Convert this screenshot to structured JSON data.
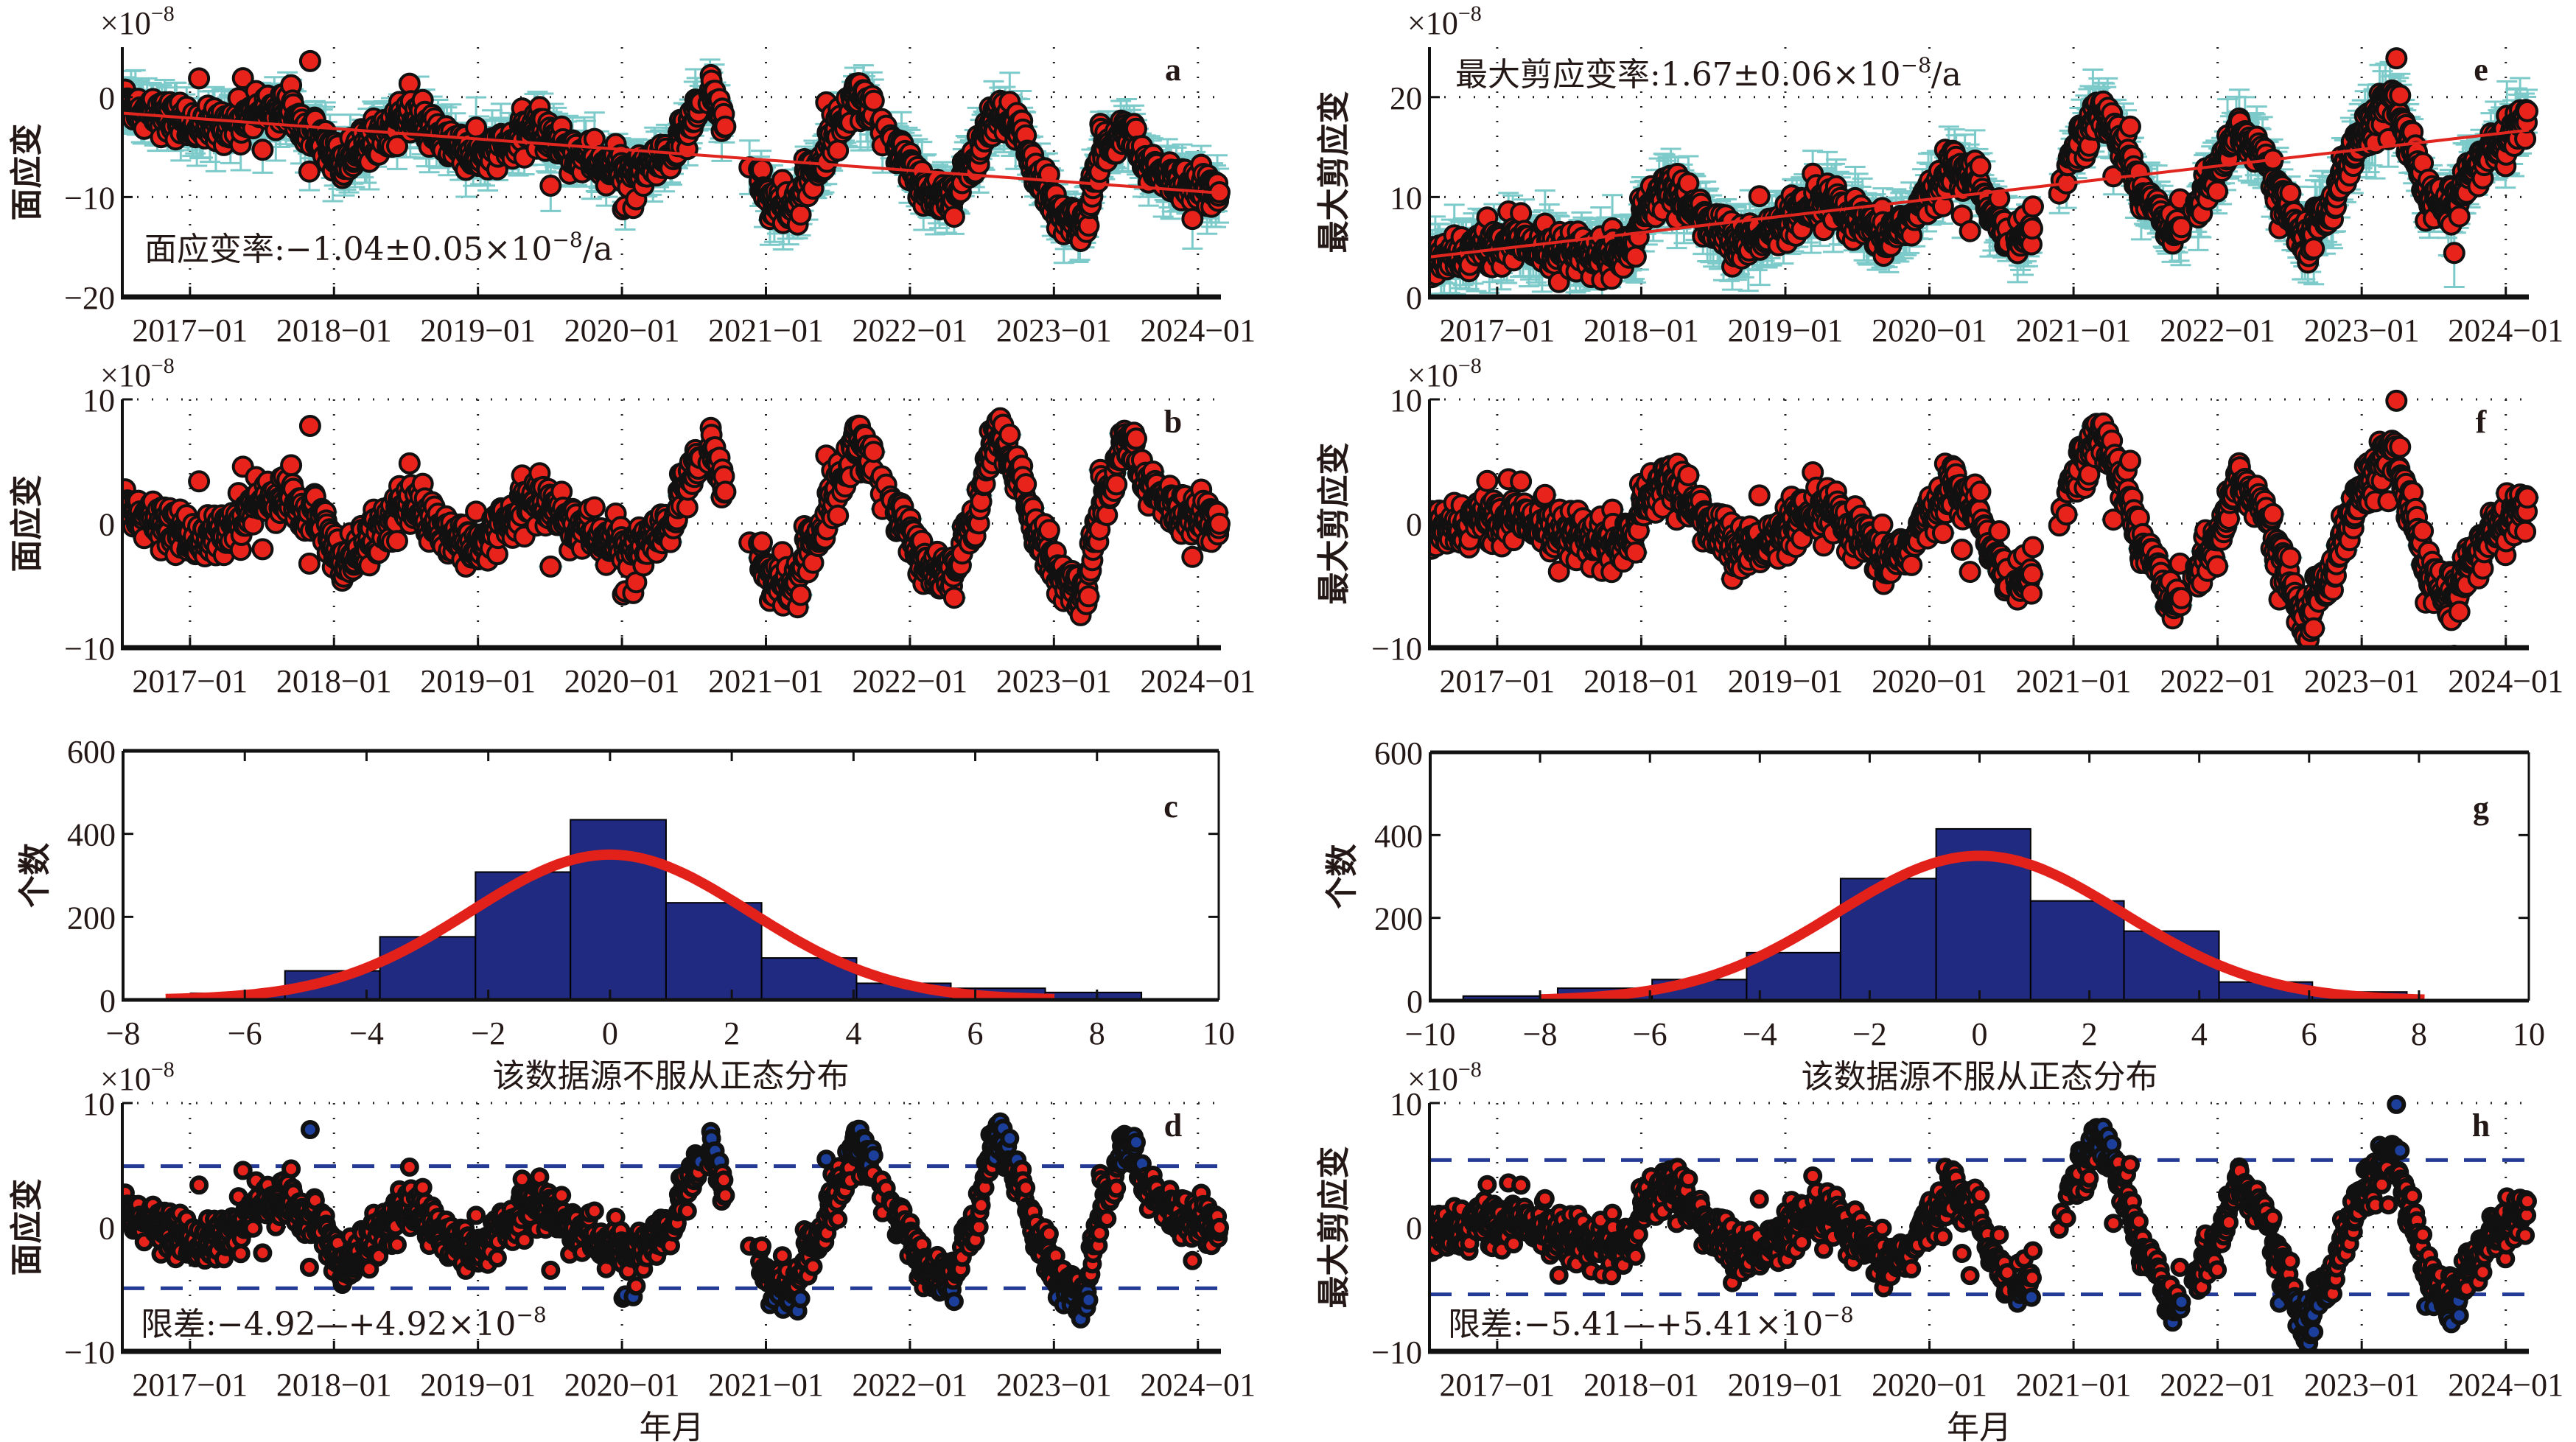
{
  "colors": {
    "point_fill": "#e8231c",
    "point_edge": "#111111",
    "outlier_fill": "#1d3f9c",
    "errorbar": "#7dcaca",
    "trend": "#e0261e",
    "hist_bar": "#1f2a80",
    "gauss": "#e3211b",
    "limit_line": "#243b95",
    "axis": "#111111"
  },
  "chart_data": [
    {
      "id": "a",
      "panel_label": "a",
      "type": "scatter",
      "ylabel": "面应变",
      "scale_label": "×10",
      "scale_exp": "−8",
      "ylim": [
        -20,
        5
      ],
      "yticks": [
        -20,
        -10,
        0
      ],
      "ytick_labels": [
        "−20",
        "−10",
        "0"
      ],
      "xlim": [
        2016.53,
        2024.16
      ],
      "xticks": [
        2017,
        2018,
        2019,
        2020,
        2021,
        2022,
        2023,
        2024
      ],
      "xtick_labels": [
        "2017−01",
        "2018−01",
        "2019−01",
        "2020−01",
        "2021−01",
        "2022−01",
        "2023−01",
        "2024−01"
      ],
      "grid": true,
      "error_bars": true,
      "errorbar_halfwidth": 2.2,
      "trend": {
        "start": [
          2016.53,
          -1.6
        ],
        "end": [
          2024.16,
          -9.6
        ],
        "rate_label": "面应变率:−1.04±0.05×10",
        "rate_exp": "−8",
        "rate_unit": "/a"
      },
      "series_shape": [
        [
          2016.55,
          -0.5
        ],
        [
          2016.7,
          -1.5
        ],
        [
          2016.9,
          -2.2
        ],
        [
          2017.1,
          -3.0
        ],
        [
          2017.3,
          -2.5
        ],
        [
          2017.5,
          -1.2
        ],
        [
          2017.7,
          -1.5
        ],
        [
          2017.9,
          -3.5
        ],
        [
          2018.05,
          -6.5
        ],
        [
          2018.2,
          -5.0
        ],
        [
          2018.35,
          -3.5
        ],
        [
          2018.5,
          -2.0
        ],
        [
          2018.6,
          -3.0
        ],
        [
          2018.8,
          -4.5
        ],
        [
          2019.0,
          -6.0
        ],
        [
          2019.2,
          -5.0
        ],
        [
          2019.4,
          -3.0
        ],
        [
          2019.55,
          -4.5
        ],
        [
          2019.75,
          -6.0
        ],
        [
          2019.9,
          -7.0
        ],
        [
          2020.1,
          -7.5
        ],
        [
          2020.3,
          -6.5
        ],
        [
          2020.45,
          -3.5
        ],
        [
          2020.6,
          1.0
        ],
        [
          2020.75,
          -4.0
        ],
        [
          2020.9,
          -6.5
        ],
        [
          2021.05,
          -10.5
        ],
        [
          2021.2,
          -11.0
        ],
        [
          2021.35,
          -7.0
        ],
        [
          2021.5,
          -3.0
        ],
        [
          2021.65,
          0.5
        ],
        [
          2021.8,
          -3.0
        ],
        [
          2021.95,
          -6.0
        ],
        [
          2022.1,
          -9.5
        ],
        [
          2022.3,
          -10.0
        ],
        [
          2022.45,
          -6.0
        ],
        [
          2022.6,
          -1.5
        ],
        [
          2022.75,
          -3.0
        ],
        [
          2022.9,
          -8.0
        ],
        [
          2023.05,
          -12.0
        ],
        [
          2023.2,
          -12.5
        ],
        [
          2023.35,
          -5.0
        ],
        [
          2023.5,
          -3.0
        ],
        [
          2023.65,
          -7.0
        ],
        [
          2023.85,
          -8.5
        ],
        [
          2024.15,
          -9.5
        ]
      ],
      "gaps": [
        [
          2020.55,
          2020.6
        ],
        [
          2020.72,
          2020.95
        ],
        [
          2021.75,
          2021.9
        ]
      ]
    },
    {
      "id": "b",
      "panel_label": "b",
      "type": "scatter",
      "ylabel": "面应变",
      "scale_label": "×10",
      "scale_exp": "−8",
      "ylim": [
        -10,
        10
      ],
      "yticks": [
        -10,
        0,
        10
      ],
      "ytick_labels": [
        "−10",
        "0",
        "10"
      ],
      "xlim": [
        2016.53,
        2024.16
      ],
      "xticks": [
        2017,
        2018,
        2019,
        2020,
        2021,
        2022,
        2023,
        2024
      ],
      "xtick_labels": [
        "2017−01",
        "2018−01",
        "2019−01",
        "2020−01",
        "2021−01",
        "2022−01",
        "2023−01",
        "2024−01"
      ],
      "grid": true,
      "series_shape": [
        [
          2016.55,
          1.5
        ],
        [
          2016.7,
          0.5
        ],
        [
          2016.9,
          -0.5
        ],
        [
          2017.1,
          -1.5
        ],
        [
          2017.3,
          0.0
        ],
        [
          2017.5,
          2.0
        ],
        [
          2017.7,
          2.0
        ],
        [
          2017.9,
          1.0
        ],
        [
          2018.05,
          -3.0
        ],
        [
          2018.2,
          -2.0
        ],
        [
          2018.35,
          0.0
        ],
        [
          2018.5,
          1.5
        ],
        [
          2018.6,
          0.5
        ],
        [
          2018.8,
          -1.0
        ],
        [
          2019.0,
          -2.0
        ],
        [
          2019.2,
          0.0
        ],
        [
          2019.4,
          2.0
        ],
        [
          2019.55,
          1.0
        ],
        [
          2019.75,
          -0.5
        ],
        [
          2019.9,
          -1.5
        ],
        [
          2020.1,
          -2.0
        ],
        [
          2020.3,
          -1.0
        ],
        [
          2020.45,
          3.0
        ],
        [
          2020.6,
          6.5
        ],
        [
          2020.75,
          1.5
        ],
        [
          2020.9,
          -1.0
        ],
        [
          2021.05,
          -4.5
        ],
        [
          2021.2,
          -5.0
        ],
        [
          2021.35,
          -1.0
        ],
        [
          2021.5,
          3.0
        ],
        [
          2021.65,
          7.0
        ],
        [
          2021.8,
          3.0
        ],
        [
          2021.95,
          0.0
        ],
        [
          2022.1,
          -3.5
        ],
        [
          2022.3,
          -4.0
        ],
        [
          2022.45,
          0.5
        ],
        [
          2022.6,
          7.5
        ],
        [
          2022.75,
          4.0
        ],
        [
          2022.9,
          -1.0
        ],
        [
          2023.05,
          -4.5
        ],
        [
          2023.2,
          -5.5
        ],
        [
          2023.35,
          2.0
        ],
        [
          2023.5,
          7.0
        ],
        [
          2023.65,
          3.0
        ],
        [
          2023.85,
          1.0
        ],
        [
          2024.15,
          0.0
        ]
      ],
      "gaps": [
        [
          2020.55,
          2020.6
        ],
        [
          2020.72,
          2020.95
        ],
        [
          2021.75,
          2021.9
        ]
      ]
    },
    {
      "id": "c",
      "panel_label": "c",
      "type": "bar",
      "ylabel": "个数",
      "xlabel": "该数据源不服从正态分布",
      "xlim": [
        -8,
        10
      ],
      "xticks": [
        -8,
        -6,
        -4,
        -2,
        0,
        2,
        4,
        6,
        8,
        10
      ],
      "xtick_labels": [
        "−8",
        "−6",
        "−4",
        "−2",
        "0",
        "2",
        "4",
        "6",
        "8",
        "10"
      ],
      "ylim": [
        0,
        600
      ],
      "yticks": [
        0,
        200,
        400,
        600
      ],
      "ytick_labels": [
        "0",
        "200",
        "400",
        "600"
      ],
      "bin_edges": [
        -6.89,
        -5.34,
        -3.78,
        -2.21,
        -0.65,
        0.92,
        2.49,
        4.05,
        5.6,
        7.15,
        8.73
      ],
      "counts": [
        16,
        70,
        152,
        308,
        434,
        234,
        101,
        40,
        28,
        18
      ],
      "normal_fit": {
        "mean": 0.0,
        "peak": 350,
        "sigma": 2.3,
        "x_range": [
          -7.3,
          7.3
        ]
      }
    },
    {
      "id": "d",
      "panel_label": "d",
      "type": "scatter",
      "ylabel": "面应变",
      "xlabel": "年月",
      "scale_label": "×10",
      "scale_exp": "−8",
      "ylim": [
        -10,
        10
      ],
      "yticks": [
        -10,
        0,
        10
      ],
      "ytick_labels": [
        "−10",
        "0",
        "10"
      ],
      "xlim": [
        2016.53,
        2024.16
      ],
      "xticks": [
        2017,
        2018,
        2019,
        2020,
        2021,
        2022,
        2023,
        2024
      ],
      "xtick_labels": [
        "2017−01",
        "2018−01",
        "2019−01",
        "2020−01",
        "2021−01",
        "2022−01",
        "2023−01",
        "2024−01"
      ],
      "grid": true,
      "source": "b",
      "limit": 4.92,
      "limit_label": "限差:−4.92—+4.92×10",
      "limit_exp": "−8"
    },
    {
      "id": "e",
      "panel_label": "e",
      "type": "scatter",
      "ylabel": "最大剪应变",
      "scale_label": "×10",
      "scale_exp": "−8",
      "ylim": [
        0,
        25
      ],
      "yticks": [
        0,
        10,
        20
      ],
      "ytick_labels": [
        "0",
        "10",
        "20"
      ],
      "xlim": [
        2016.53,
        2024.16
      ],
      "xticks": [
        2017,
        2018,
        2019,
        2020,
        2021,
        2022,
        2023,
        2024
      ],
      "xtick_labels": [
        "2017−01",
        "2018−01",
        "2019−01",
        "2020−01",
        "2021−01",
        "2022−01",
        "2023−01",
        "2024−01"
      ],
      "grid": true,
      "error_bars": true,
      "errorbar_halfwidth": 2.6,
      "trend": {
        "start": [
          2016.53,
          4.0
        ],
        "end": [
          2024.16,
          16.7
        ],
        "rate_label": "最大剪应变率:1.67±0.06×10",
        "rate_exp": "−8",
        "rate_unit": "/a"
      },
      "series_shape": [
        [
          2016.55,
          3.5
        ],
        [
          2016.7,
          4.0
        ],
        [
          2016.9,
          5.0
        ],
        [
          2017.1,
          5.5
        ],
        [
          2017.3,
          5.0
        ],
        [
          2017.5,
          5.0
        ],
        [
          2017.7,
          4.0
        ],
        [
          2017.9,
          4.5
        ],
        [
          2018.05,
          8.5
        ],
        [
          2018.2,
          11.5
        ],
        [
          2018.35,
          9.0
        ],
        [
          2018.5,
          7.0
        ],
        [
          2018.7,
          5.5
        ],
        [
          2018.9,
          6.5
        ],
        [
          2019.1,
          8.0
        ],
        [
          2019.3,
          9.5
        ],
        [
          2019.5,
          7.5
        ],
        [
          2019.7,
          6.0
        ],
        [
          2019.85,
          7.5
        ],
        [
          2020.0,
          10.0
        ],
        [
          2020.15,
          13.0
        ],
        [
          2020.3,
          12.0
        ],
        [
          2020.45,
          8.0
        ],
        [
          2020.6,
          5.0
        ],
        [
          2020.75,
          7.0
        ],
        [
          2020.9,
          11.0
        ],
        [
          2021.05,
          16.0
        ],
        [
          2021.2,
          18.5
        ],
        [
          2021.35,
          15.0
        ],
        [
          2021.5,
          10.0
        ],
        [
          2021.7,
          7.0
        ],
        [
          2021.85,
          9.0
        ],
        [
          2022.0,
          13.0
        ],
        [
          2022.15,
          16.5
        ],
        [
          2022.3,
          14.5
        ],
        [
          2022.45,
          10.0
        ],
        [
          2022.6,
          6.0
        ],
        [
          2022.75,
          8.0
        ],
        [
          2022.9,
          13.5
        ],
        [
          2023.05,
          17.0
        ],
        [
          2023.2,
          20.0
        ],
        [
          2023.35,
          15.0
        ],
        [
          2023.45,
          10.0
        ],
        [
          2023.6,
          9.0
        ],
        [
          2023.8,
          13.0
        ],
        [
          2023.95,
          15.5
        ],
        [
          2024.15,
          17.5
        ]
      ],
      "gaps": [
        [
          2020.55,
          2020.6
        ],
        [
          2020.72,
          2020.95
        ],
        [
          2021.75,
          2021.85
        ]
      ]
    },
    {
      "id": "f",
      "panel_label": "f",
      "type": "scatter",
      "ylabel": "最大剪应变",
      "scale_label": "×10",
      "scale_exp": "−8",
      "ylim": [
        -10,
        10
      ],
      "yticks": [
        -10,
        0,
        10
      ],
      "ytick_labels": [
        "−10",
        "0",
        "10"
      ],
      "xlim": [
        2016.53,
        2024.16
      ],
      "xticks": [
        2017,
        2018,
        2019,
        2020,
        2021,
        2022,
        2023,
        2024
      ],
      "xtick_labels": [
        "2017−01",
        "2018−01",
        "2019−01",
        "2020−01",
        "2021−01",
        "2022−01",
        "2023−01",
        "2024−01"
      ],
      "grid": true,
      "series_shape": [
        [
          2016.55,
          -0.5
        ],
        [
          2016.7,
          -0.5
        ],
        [
          2016.9,
          0.5
        ],
        [
          2017.1,
          0.5
        ],
        [
          2017.3,
          0.0
        ],
        [
          2017.5,
          -0.5
        ],
        [
          2017.7,
          -1.5
        ],
        [
          2017.9,
          -1.5
        ],
        [
          2018.05,
          1.5
        ],
        [
          2018.2,
          4.0
        ],
        [
          2018.35,
          1.5
        ],
        [
          2018.5,
          -0.5
        ],
        [
          2018.7,
          -2.0
        ],
        [
          2018.9,
          -1.5
        ],
        [
          2019.1,
          0.0
        ],
        [
          2019.3,
          1.0
        ],
        [
          2019.5,
          -1.0
        ],
        [
          2019.7,
          -3.0
        ],
        [
          2019.85,
          -2.0
        ],
        [
          2020.0,
          0.5
        ],
        [
          2020.15,
          3.0
        ],
        [
          2020.3,
          1.5
        ],
        [
          2020.45,
          -2.5
        ],
        [
          2020.6,
          -5.5
        ],
        [
          2020.75,
          -4.0
        ],
        [
          2020.9,
          0.5
        ],
        [
          2021.05,
          5.0
        ],
        [
          2021.2,
          7.0
        ],
        [
          2021.35,
          3.0
        ],
        [
          2021.5,
          -2.0
        ],
        [
          2021.7,
          -6.0
        ],
        [
          2021.85,
          -4.0
        ],
        [
          2022.0,
          -1.0
        ],
        [
          2022.15,
          3.5
        ],
        [
          2022.3,
          1.5
        ],
        [
          2022.45,
          -3.0
        ],
        [
          2022.6,
          -7.5
        ],
        [
          2022.75,
          -5.0
        ],
        [
          2022.9,
          0.0
        ],
        [
          2023.05,
          3.5
        ],
        [
          2023.2,
          6.0
        ],
        [
          2023.35,
          1.0
        ],
        [
          2023.45,
          -4.0
        ],
        [
          2023.6,
          -6.0
        ],
        [
          2023.8,
          -2.5
        ],
        [
          2023.95,
          0.0
        ],
        [
          2024.15,
          1.0
        ]
      ],
      "gaps": [
        [
          2020.55,
          2020.6
        ],
        [
          2020.72,
          2020.95
        ],
        [
          2021.75,
          2021.85
        ]
      ]
    },
    {
      "id": "g",
      "panel_label": "g",
      "type": "bar",
      "ylabel": "个数",
      "xlabel": "该数据源不服从正态分布",
      "xlim": [
        -10,
        10
      ],
      "xticks": [
        -10,
        -8,
        -6,
        -4,
        -2,
        0,
        2,
        4,
        6,
        8,
        10
      ],
      "xtick_labels": [
        "−10",
        "−8",
        "−6",
        "−4",
        "−2",
        "0",
        "2",
        "4",
        "6",
        "8",
        "10"
      ],
      "ylim": [
        0,
        600
      ],
      "yticks": [
        0,
        200,
        400,
        600
      ],
      "ytick_labels": [
        "0",
        "200",
        "400",
        "600"
      ],
      "bin_edges": [
        -9.4,
        -7.68,
        -5.96,
        -4.24,
        -2.53,
        -0.79,
        0.93,
        2.63,
        4.36,
        6.06,
        7.78
      ],
      "counts": [
        11,
        30,
        51,
        116,
        295,
        415,
        241,
        168,
        45,
        21
      ],
      "normal_fit": {
        "mean": 0.0,
        "peak": 350,
        "sigma": 2.6,
        "x_range": [
          -8.0,
          8.1
        ]
      }
    },
    {
      "id": "h",
      "panel_label": "h",
      "type": "scatter",
      "ylabel": "最大剪应变",
      "xlabel": "年月",
      "scale_label": "×10",
      "scale_exp": "−8",
      "ylim": [
        -10,
        10
      ],
      "yticks": [
        -10,
        0,
        10
      ],
      "ytick_labels": [
        "−10",
        "0",
        "10"
      ],
      "xlim": [
        2016.53,
        2024.16
      ],
      "xticks": [
        2017,
        2018,
        2019,
        2020,
        2021,
        2022,
        2023,
        2024
      ],
      "xtick_labels": [
        "2017−01",
        "2018−01",
        "2019−01",
        "2020−01",
        "2021−01",
        "2022−01",
        "2023−01",
        "2024−01"
      ],
      "grid": true,
      "source": "f",
      "limit": 5.41,
      "limit_label": "限差:−5.41—+5.41×10",
      "limit_exp": "−8"
    }
  ]
}
